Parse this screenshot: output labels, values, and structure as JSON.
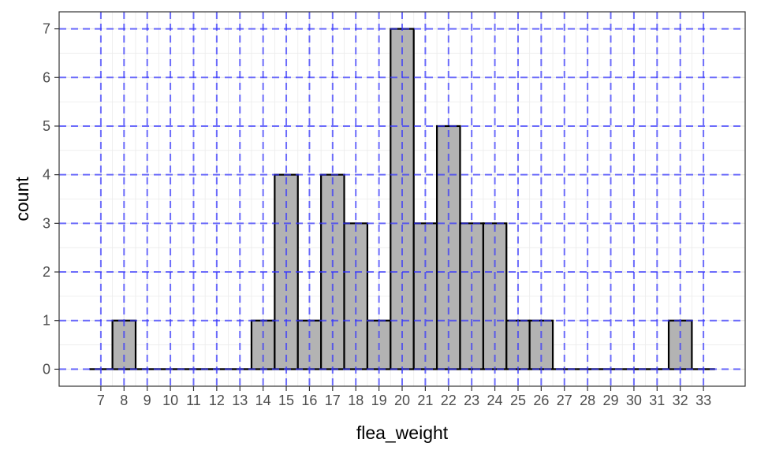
{
  "chart_data": {
    "type": "bar",
    "title": "",
    "xlabel": "flea_weight",
    "ylabel": "count",
    "x": [
      7,
      8,
      9,
      10,
      11,
      12,
      13,
      14,
      15,
      16,
      17,
      18,
      19,
      20,
      21,
      22,
      23,
      24,
      25,
      26,
      27,
      28,
      29,
      30,
      31,
      32,
      33
    ],
    "values": [
      0,
      1,
      0,
      0,
      0,
      0,
      0,
      1,
      4,
      1,
      4,
      3,
      1,
      7,
      3,
      5,
      3,
      3,
      1,
      1,
      0,
      0,
      0,
      0,
      0,
      1,
      0
    ],
    "x_ticks": [
      "7",
      "8",
      "9",
      "10",
      "11",
      "12",
      "13",
      "14",
      "15",
      "16",
      "17",
      "18",
      "19",
      "20",
      "21",
      "22",
      "23",
      "24",
      "25",
      "26",
      "27",
      "28",
      "29",
      "30",
      "31",
      "32",
      "33"
    ],
    "y_ticks": [
      "0",
      "1",
      "2",
      "3",
      "4",
      "5",
      "6",
      "7"
    ],
    "xlim": [
      5.2,
      34.8
    ],
    "ylim": [
      -0.35,
      7.35
    ],
    "grid": true,
    "reference_lines": {
      "vertical_at": [
        7,
        8,
        9,
        10,
        11,
        12,
        13,
        14,
        15,
        16,
        17,
        18,
        19,
        20,
        21,
        22,
        23,
        24,
        25,
        26,
        27,
        28,
        29,
        30,
        31,
        32,
        33
      ],
      "horizontal_at": [
        0,
        1,
        2,
        3,
        4,
        5,
        6,
        7
      ],
      "style": "dashed"
    },
    "colors": {
      "bar_fill": "#b3b3b3",
      "bar_outline": "#000000",
      "reference_line": "#3333ff",
      "grid": "#ebebeb",
      "panel_border": "#333333"
    }
  }
}
